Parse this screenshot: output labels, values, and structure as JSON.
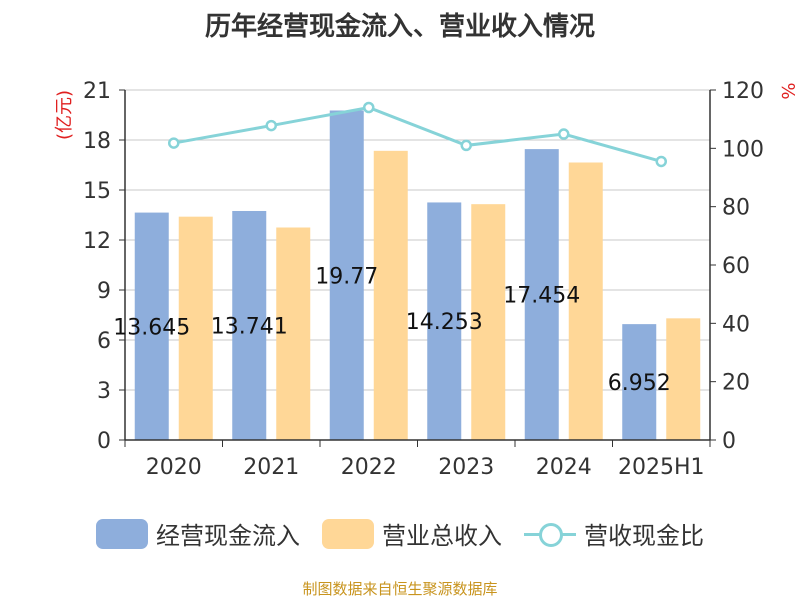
{
  "chart_data": {
    "type": "bar",
    "title": "历年经营现金流入、营业收入情况",
    "categories": [
      "2020",
      "2021",
      "2022",
      "2023",
      "2024",
      "2025H1"
    ],
    "series": [
      {
        "name": "经营现金流入",
        "axis": "left",
        "kind": "bar",
        "color": "#8eaedc",
        "values": [
          13.645,
          13.741,
          19.77,
          14.253,
          17.454,
          6.952
        ],
        "data_labels": [
          "13.645",
          "13.741",
          "19.77",
          "14.253",
          "17.454",
          "6.952"
        ]
      },
      {
        "name": "营业总收入",
        "axis": "left",
        "kind": "bar",
        "color": "#ffd797",
        "values": [
          13.4,
          12.75,
          17.35,
          14.15,
          16.65,
          7.3
        ]
      },
      {
        "name": "营收现金比",
        "axis": "right",
        "kind": "line",
        "color": "#86d3d8",
        "values": [
          101.8,
          107.8,
          114,
          101,
          104.9,
          95.5
        ]
      }
    ],
    "y_left": {
      "label": "(亿元)",
      "ticks": [
        0,
        3,
        6,
        9,
        12,
        15,
        18,
        21
      ],
      "min": 0,
      "max": 21
    },
    "y_right": {
      "label": "%",
      "ticks": [
        0,
        20,
        40,
        60,
        80,
        100,
        120
      ],
      "min": 0,
      "max": 120
    },
    "grid": true,
    "legend_position": "bottom"
  },
  "source": "制图数据来自恒生聚源数据库"
}
